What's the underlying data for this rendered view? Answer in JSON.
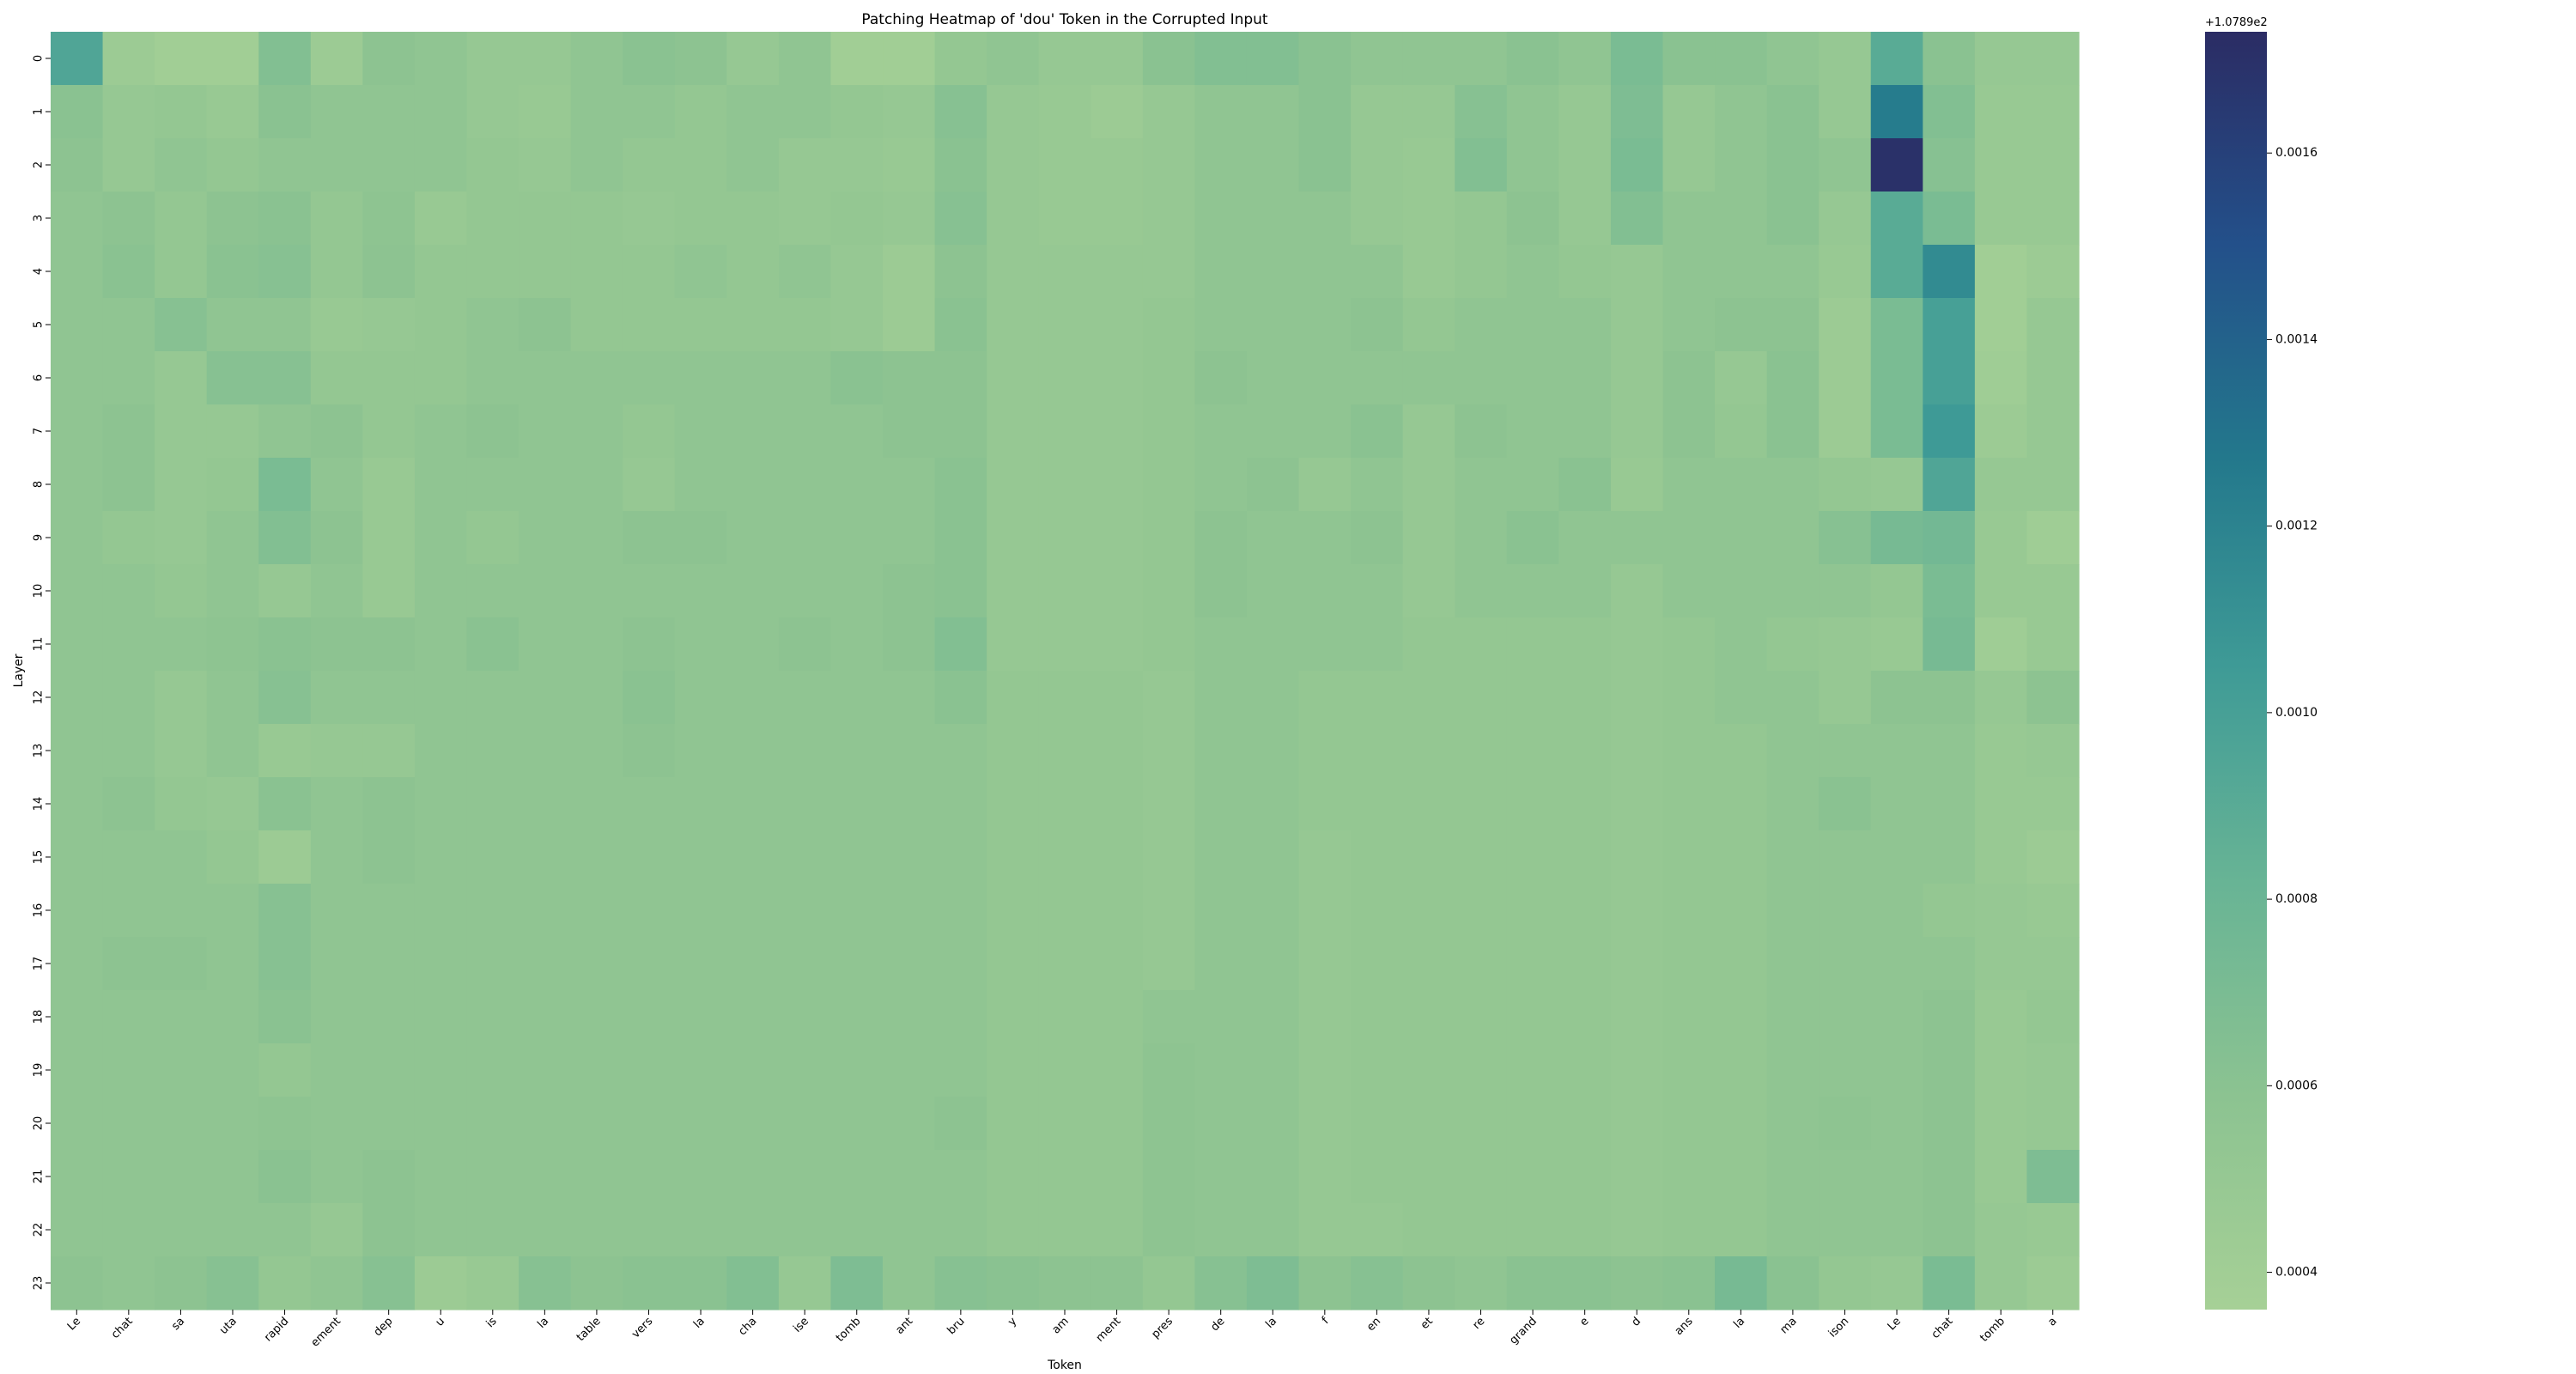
{
  "chart_data": {
    "type": "heatmap",
    "title": "Patching Heatmap of 'dou' Token in the Corrupted Input",
    "xlabel": "Token",
    "ylabel": "Layer",
    "x_tokens": [
      "Le",
      "chat",
      "sa",
      "uta",
      "rapid",
      "ement",
      "dep",
      "u",
      "is",
      "la",
      "table",
      "vers",
      "la",
      "cha",
      "ise",
      "tomb",
      "ant",
      "bru",
      "y",
      "am",
      "ment",
      "pres",
      "de",
      "la",
      "f",
      "en",
      "et",
      "re",
      "grand",
      "e",
      "d",
      "ans",
      "la",
      "ma",
      "ison",
      "Le",
      "chat",
      "tomb",
      "a"
    ],
    "y_layers": [
      "0",
      "1",
      "2",
      "3",
      "4",
      "5",
      "6",
      "7",
      "8",
      "9",
      "10",
      "11",
      "12",
      "13",
      "14",
      "15",
      "16",
      "17",
      "18",
      "19",
      "20",
      "21",
      "22",
      "23"
    ],
    "colorbar": {
      "offset_label": "+1.0789e2",
      "tick_values": [
        0.0004,
        0.0006,
        0.0008,
        0.001,
        0.0012,
        0.0014,
        0.0016
      ],
      "tick_labels": [
        "0.0004",
        "0.0006",
        "0.0008",
        "0.0010",
        "0.0012",
        "0.0014",
        "0.0016"
      ],
      "range": [
        0.00036,
        0.00173
      ],
      "colors": [
        "#a6d096",
        "#8cc391",
        "#68b495",
        "#3f9b96",
        "#23788c",
        "#23508a",
        "#2b2c64"
      ]
    },
    "values": [
      [
        0.00095,
        0.00045,
        0.0004,
        0.0004,
        0.00065,
        0.00045,
        0.00058,
        0.00055,
        0.0005,
        0.0005,
        0.00055,
        0.0006,
        0.00058,
        0.0005,
        0.00055,
        0.0004,
        0.0004,
        0.00052,
        0.00055,
        0.0005,
        0.0005,
        0.0006,
        0.00065,
        0.00065,
        0.0006,
        0.00055,
        0.00055,
        0.00055,
        0.0006,
        0.00055,
        0.0007,
        0.0006,
        0.0006,
        0.00055,
        0.0005,
        0.0009,
        0.0006,
        0.0005,
        0.0005
      ],
      [
        0.0006,
        0.0005,
        0.00052,
        0.00048,
        0.0006,
        0.00055,
        0.00055,
        0.00055,
        0.0005,
        0.00048,
        0.00055,
        0.00055,
        0.00052,
        0.00055,
        0.00055,
        0.00052,
        0.0005,
        0.00062,
        0.0005,
        0.00048,
        0.00045,
        0.0005,
        0.00055,
        0.00055,
        0.0006,
        0.0005,
        0.0005,
        0.00062,
        0.00055,
        0.0005,
        0.00068,
        0.0005,
        0.00055,
        0.0006,
        0.0005,
        0.00125,
        0.00065,
        0.00048,
        0.00048
      ],
      [
        0.00058,
        0.0005,
        0.00055,
        0.00052,
        0.00055,
        0.00055,
        0.00055,
        0.00055,
        0.00052,
        0.0005,
        0.00055,
        0.00052,
        0.00052,
        0.00055,
        0.0005,
        0.0005,
        0.00048,
        0.0006,
        0.0005,
        0.00048,
        0.00048,
        0.0005,
        0.00055,
        0.00055,
        0.0006,
        0.0005,
        0.00048,
        0.00065,
        0.00055,
        0.0005,
        0.0007,
        0.0005,
        0.00055,
        0.0006,
        0.00055,
        0.0017,
        0.00062,
        0.00048,
        0.00048
      ],
      [
        0.00055,
        0.00058,
        0.00052,
        0.00058,
        0.0006,
        0.00052,
        0.00057,
        0.00048,
        0.00052,
        0.00052,
        0.00052,
        0.0005,
        0.00052,
        0.00052,
        0.0005,
        0.00052,
        0.0005,
        0.00062,
        0.0005,
        0.00048,
        0.00048,
        0.0005,
        0.00055,
        0.00055,
        0.00055,
        0.0005,
        0.00048,
        0.00052,
        0.00058,
        0.0005,
        0.00065,
        0.00055,
        0.00055,
        0.0006,
        0.0005,
        0.0009,
        0.0007,
        0.00048,
        0.00048
      ],
      [
        0.00055,
        0.0006,
        0.00052,
        0.0006,
        0.00062,
        0.00052,
        0.00058,
        0.00052,
        0.00052,
        0.00052,
        0.00052,
        0.00052,
        0.00055,
        0.00052,
        0.00055,
        0.0005,
        0.00045,
        0.00058,
        0.0005,
        0.0005,
        0.0005,
        0.0005,
        0.00055,
        0.00055,
        0.00055,
        0.00055,
        0.00048,
        0.00052,
        0.00055,
        0.00052,
        0.0005,
        0.00055,
        0.00055,
        0.00055,
        0.00048,
        0.0009,
        0.00115,
        0.0004,
        0.00045
      ],
      [
        0.00055,
        0.00055,
        0.00062,
        0.00055,
        0.00055,
        0.00048,
        0.0005,
        0.00052,
        0.00055,
        0.00058,
        0.00052,
        0.00052,
        0.00052,
        0.00052,
        0.00052,
        0.0005,
        0.00045,
        0.0006,
        0.0005,
        0.0005,
        0.0005,
        0.00052,
        0.00055,
        0.00055,
        0.00055,
        0.00058,
        0.00052,
        0.00055,
        0.00055,
        0.00055,
        0.0005,
        0.00055,
        0.00058,
        0.00058,
        0.00045,
        0.0007,
        0.001,
        0.0004,
        0.0005
      ],
      [
        0.00055,
        0.00055,
        0.0005,
        0.00062,
        0.00062,
        0.00052,
        0.00052,
        0.00052,
        0.00055,
        0.00055,
        0.00055,
        0.00055,
        0.00055,
        0.00055,
        0.00055,
        0.0006,
        0.00058,
        0.00058,
        0.0005,
        0.0005,
        0.0005,
        0.00052,
        0.00058,
        0.00055,
        0.00055,
        0.00055,
        0.00055,
        0.00055,
        0.00055,
        0.00055,
        0.0005,
        0.00058,
        0.0005,
        0.0006,
        0.00045,
        0.0007,
        0.001,
        0.00042,
        0.0005
      ],
      [
        0.00055,
        0.00058,
        0.0005,
        0.0005,
        0.00055,
        0.00058,
        0.00052,
        0.00055,
        0.00058,
        0.00055,
        0.00055,
        0.00052,
        0.00055,
        0.00055,
        0.00055,
        0.00055,
        0.00058,
        0.00058,
        0.0005,
        0.0005,
        0.0005,
        0.00052,
        0.00055,
        0.00055,
        0.00055,
        0.0006,
        0.0005,
        0.00058,
        0.00055,
        0.00055,
        0.0005,
        0.00058,
        0.00052,
        0.0006,
        0.00045,
        0.0007,
        0.00105,
        0.00045,
        0.0005
      ],
      [
        0.00055,
        0.00058,
        0.0005,
        0.00052,
        0.0007,
        0.00055,
        0.00048,
        0.00055,
        0.00055,
        0.00055,
        0.00055,
        0.0005,
        0.00055,
        0.00055,
        0.00055,
        0.00055,
        0.00055,
        0.0006,
        0.0005,
        0.0005,
        0.0005,
        0.00052,
        0.00055,
        0.00058,
        0.0005,
        0.00055,
        0.0005,
        0.00055,
        0.00055,
        0.0006,
        0.00048,
        0.00055,
        0.00055,
        0.00055,
        0.00052,
        0.0005,
        0.00095,
        0.0005,
        0.0005
      ],
      [
        0.00055,
        0.00052,
        0.0005,
        0.00055,
        0.00065,
        0.00058,
        0.00048,
        0.00055,
        0.00052,
        0.00055,
        0.00055,
        0.00058,
        0.00058,
        0.00055,
        0.00055,
        0.00055,
        0.00055,
        0.0006,
        0.0005,
        0.0005,
        0.0005,
        0.00052,
        0.00058,
        0.00055,
        0.00055,
        0.00058,
        0.0005,
        0.00055,
        0.0006,
        0.00055,
        0.00055,
        0.00055,
        0.00055,
        0.00055,
        0.00062,
        0.00072,
        0.00075,
        0.00048,
        0.00042
      ],
      [
        0.00055,
        0.00055,
        0.00052,
        0.00055,
        0.0005,
        0.00055,
        0.00048,
        0.00055,
        0.00055,
        0.00055,
        0.00055,
        0.00055,
        0.00055,
        0.00055,
        0.00055,
        0.00055,
        0.00058,
        0.0006,
        0.0005,
        0.0005,
        0.0005,
        0.00052,
        0.00058,
        0.00055,
        0.00055,
        0.00055,
        0.0005,
        0.00055,
        0.00055,
        0.00055,
        0.0005,
        0.00055,
        0.00055,
        0.00055,
        0.00055,
        0.00052,
        0.0007,
        0.00048,
        0.00048
      ],
      [
        0.00055,
        0.00055,
        0.00055,
        0.00057,
        0.0006,
        0.00058,
        0.00058,
        0.00055,
        0.0006,
        0.00055,
        0.00055,
        0.00058,
        0.00055,
        0.00055,
        0.00058,
        0.00055,
        0.00058,
        0.00065,
        0.0005,
        0.0005,
        0.0005,
        0.00052,
        0.00055,
        0.00055,
        0.00055,
        0.00055,
        0.00052,
        0.00052,
        0.00052,
        0.00052,
        0.0005,
        0.00052,
        0.00055,
        0.00052,
        0.0005,
        0.00048,
        0.00072,
        0.00042,
        0.00048
      ],
      [
        0.00055,
        0.00055,
        0.0005,
        0.00055,
        0.00062,
        0.00055,
        0.00055,
        0.00055,
        0.00055,
        0.00055,
        0.00055,
        0.0006,
        0.00055,
        0.00055,
        0.00055,
        0.00055,
        0.00055,
        0.0006,
        0.00052,
        0.00052,
        0.00052,
        0.0005,
        0.00055,
        0.00055,
        0.00052,
        0.00052,
        0.00052,
        0.00052,
        0.00052,
        0.00052,
        0.0005,
        0.00052,
        0.00055,
        0.00055,
        0.0005,
        0.00058,
        0.00058,
        0.0005,
        0.00058
      ],
      [
        0.00055,
        0.00055,
        0.0005,
        0.00055,
        0.00048,
        0.0005,
        0.0005,
        0.00055,
        0.00055,
        0.00055,
        0.00055,
        0.00058,
        0.00055,
        0.00055,
        0.00055,
        0.00055,
        0.00055,
        0.00055,
        0.00052,
        0.00052,
        0.00052,
        0.0005,
        0.00055,
        0.00055,
        0.00052,
        0.00052,
        0.00052,
        0.00052,
        0.00052,
        0.00052,
        0.0005,
        0.00052,
        0.00052,
        0.00055,
        0.00055,
        0.00055,
        0.00055,
        0.00048,
        0.0005
      ],
      [
        0.00055,
        0.00058,
        0.00052,
        0.0005,
        0.0006,
        0.00055,
        0.00058,
        0.00055,
        0.00055,
        0.00055,
        0.00055,
        0.00055,
        0.00055,
        0.00055,
        0.00055,
        0.00055,
        0.00055,
        0.00055,
        0.00052,
        0.00052,
        0.00052,
        0.0005,
        0.00055,
        0.00055,
        0.00052,
        0.00052,
        0.00052,
        0.00052,
        0.00052,
        0.00052,
        0.0005,
        0.00052,
        0.00052,
        0.00055,
        0.0006,
        0.00055,
        0.00055,
        0.00048,
        0.00048
      ],
      [
        0.00055,
        0.00055,
        0.00055,
        0.00052,
        0.00045,
        0.00055,
        0.00058,
        0.00055,
        0.00055,
        0.00055,
        0.00055,
        0.00055,
        0.00055,
        0.00055,
        0.00055,
        0.00055,
        0.00055,
        0.00055,
        0.00052,
        0.00052,
        0.00052,
        0.0005,
        0.00055,
        0.00055,
        0.0005,
        0.00052,
        0.00052,
        0.00052,
        0.00052,
        0.00052,
        0.0005,
        0.00052,
        0.00052,
        0.00055,
        0.00055,
        0.00055,
        0.00055,
        0.00048,
        0.00045
      ],
      [
        0.00055,
        0.00055,
        0.00055,
        0.00055,
        0.00062,
        0.00055,
        0.00055,
        0.00055,
        0.00055,
        0.00055,
        0.00055,
        0.00055,
        0.00055,
        0.00055,
        0.00055,
        0.00055,
        0.00055,
        0.00055,
        0.00052,
        0.00052,
        0.00052,
        0.0005,
        0.00055,
        0.00055,
        0.0005,
        0.00052,
        0.00052,
        0.00052,
        0.00052,
        0.00052,
        0.0005,
        0.00052,
        0.00052,
        0.00055,
        0.00055,
        0.00055,
        0.00052,
        0.0005,
        0.00048
      ],
      [
        0.00055,
        0.00058,
        0.00058,
        0.00055,
        0.00062,
        0.00055,
        0.00055,
        0.00055,
        0.00055,
        0.00055,
        0.00055,
        0.00055,
        0.00055,
        0.00055,
        0.00055,
        0.00055,
        0.00055,
        0.00055,
        0.00052,
        0.00052,
        0.00052,
        0.0005,
        0.00055,
        0.00055,
        0.0005,
        0.00052,
        0.00052,
        0.00052,
        0.00052,
        0.00052,
        0.0005,
        0.00052,
        0.00052,
        0.00055,
        0.00055,
        0.00055,
        0.00055,
        0.0005,
        0.0005
      ],
      [
        0.00055,
        0.00055,
        0.00055,
        0.00055,
        0.0006,
        0.00055,
        0.00055,
        0.00055,
        0.00055,
        0.00055,
        0.00055,
        0.00055,
        0.00055,
        0.00055,
        0.00055,
        0.00055,
        0.00055,
        0.00055,
        0.00052,
        0.00052,
        0.00052,
        0.00055,
        0.00055,
        0.00055,
        0.0005,
        0.00052,
        0.00052,
        0.00052,
        0.00052,
        0.00052,
        0.0005,
        0.00052,
        0.00052,
        0.00055,
        0.00055,
        0.00055,
        0.00058,
        0.00048,
        0.00052
      ],
      [
        0.00055,
        0.00055,
        0.00055,
        0.00055,
        0.00052,
        0.00055,
        0.00055,
        0.00055,
        0.00055,
        0.00055,
        0.00055,
        0.00055,
        0.00055,
        0.00055,
        0.00055,
        0.00055,
        0.00055,
        0.00055,
        0.00052,
        0.00052,
        0.00052,
        0.00057,
        0.00055,
        0.00055,
        0.0005,
        0.00052,
        0.00052,
        0.00052,
        0.00052,
        0.00052,
        0.0005,
        0.00052,
        0.00052,
        0.00055,
        0.00055,
        0.00055,
        0.00058,
        0.00048,
        0.0005
      ],
      [
        0.00055,
        0.00055,
        0.00055,
        0.00055,
        0.00057,
        0.00055,
        0.00055,
        0.00055,
        0.00055,
        0.00055,
        0.00055,
        0.00055,
        0.00055,
        0.00055,
        0.00055,
        0.00055,
        0.00055,
        0.00058,
        0.00052,
        0.00052,
        0.00052,
        0.00057,
        0.00055,
        0.00055,
        0.0005,
        0.00052,
        0.00052,
        0.00052,
        0.00052,
        0.00052,
        0.0005,
        0.00052,
        0.00052,
        0.00055,
        0.00057,
        0.00055,
        0.00058,
        0.00048,
        0.0005
      ],
      [
        0.00055,
        0.00055,
        0.00055,
        0.00055,
        0.0006,
        0.00055,
        0.00058,
        0.00055,
        0.00055,
        0.00055,
        0.00055,
        0.00055,
        0.00055,
        0.00055,
        0.00055,
        0.00055,
        0.00055,
        0.00055,
        0.00052,
        0.00052,
        0.00052,
        0.00057,
        0.00055,
        0.00055,
        0.0005,
        0.00052,
        0.00052,
        0.00052,
        0.00052,
        0.00052,
        0.0005,
        0.00052,
        0.00052,
        0.00055,
        0.00055,
        0.00055,
        0.00058,
        0.00048,
        0.00068
      ],
      [
        0.00055,
        0.00055,
        0.00055,
        0.00055,
        0.00055,
        0.0005,
        0.00058,
        0.00055,
        0.00055,
        0.00055,
        0.00055,
        0.00055,
        0.00055,
        0.00055,
        0.00055,
        0.00055,
        0.00055,
        0.00055,
        0.00052,
        0.00052,
        0.00052,
        0.00057,
        0.00055,
        0.00055,
        0.0005,
        0.0005,
        0.00052,
        0.00052,
        0.00052,
        0.00052,
        0.0005,
        0.00052,
        0.00052,
        0.00055,
        0.00055,
        0.00055,
        0.00058,
        0.0005,
        0.00048
      ],
      [
        0.00058,
        0.00055,
        0.00058,
        0.00062,
        0.00052,
        0.00055,
        0.00062,
        0.00045,
        0.00048,
        0.00062,
        0.00058,
        0.0006,
        0.0006,
        0.00065,
        0.0005,
        0.00068,
        0.00055,
        0.00062,
        0.0006,
        0.00058,
        0.00058,
        0.00052,
        0.00062,
        0.00068,
        0.00058,
        0.00062,
        0.00058,
        0.00055,
        0.0006,
        0.0006,
        0.00058,
        0.0006,
        0.00072,
        0.0006,
        0.00052,
        0.0005,
        0.0007,
        0.0005,
        0.00045
      ]
    ]
  }
}
